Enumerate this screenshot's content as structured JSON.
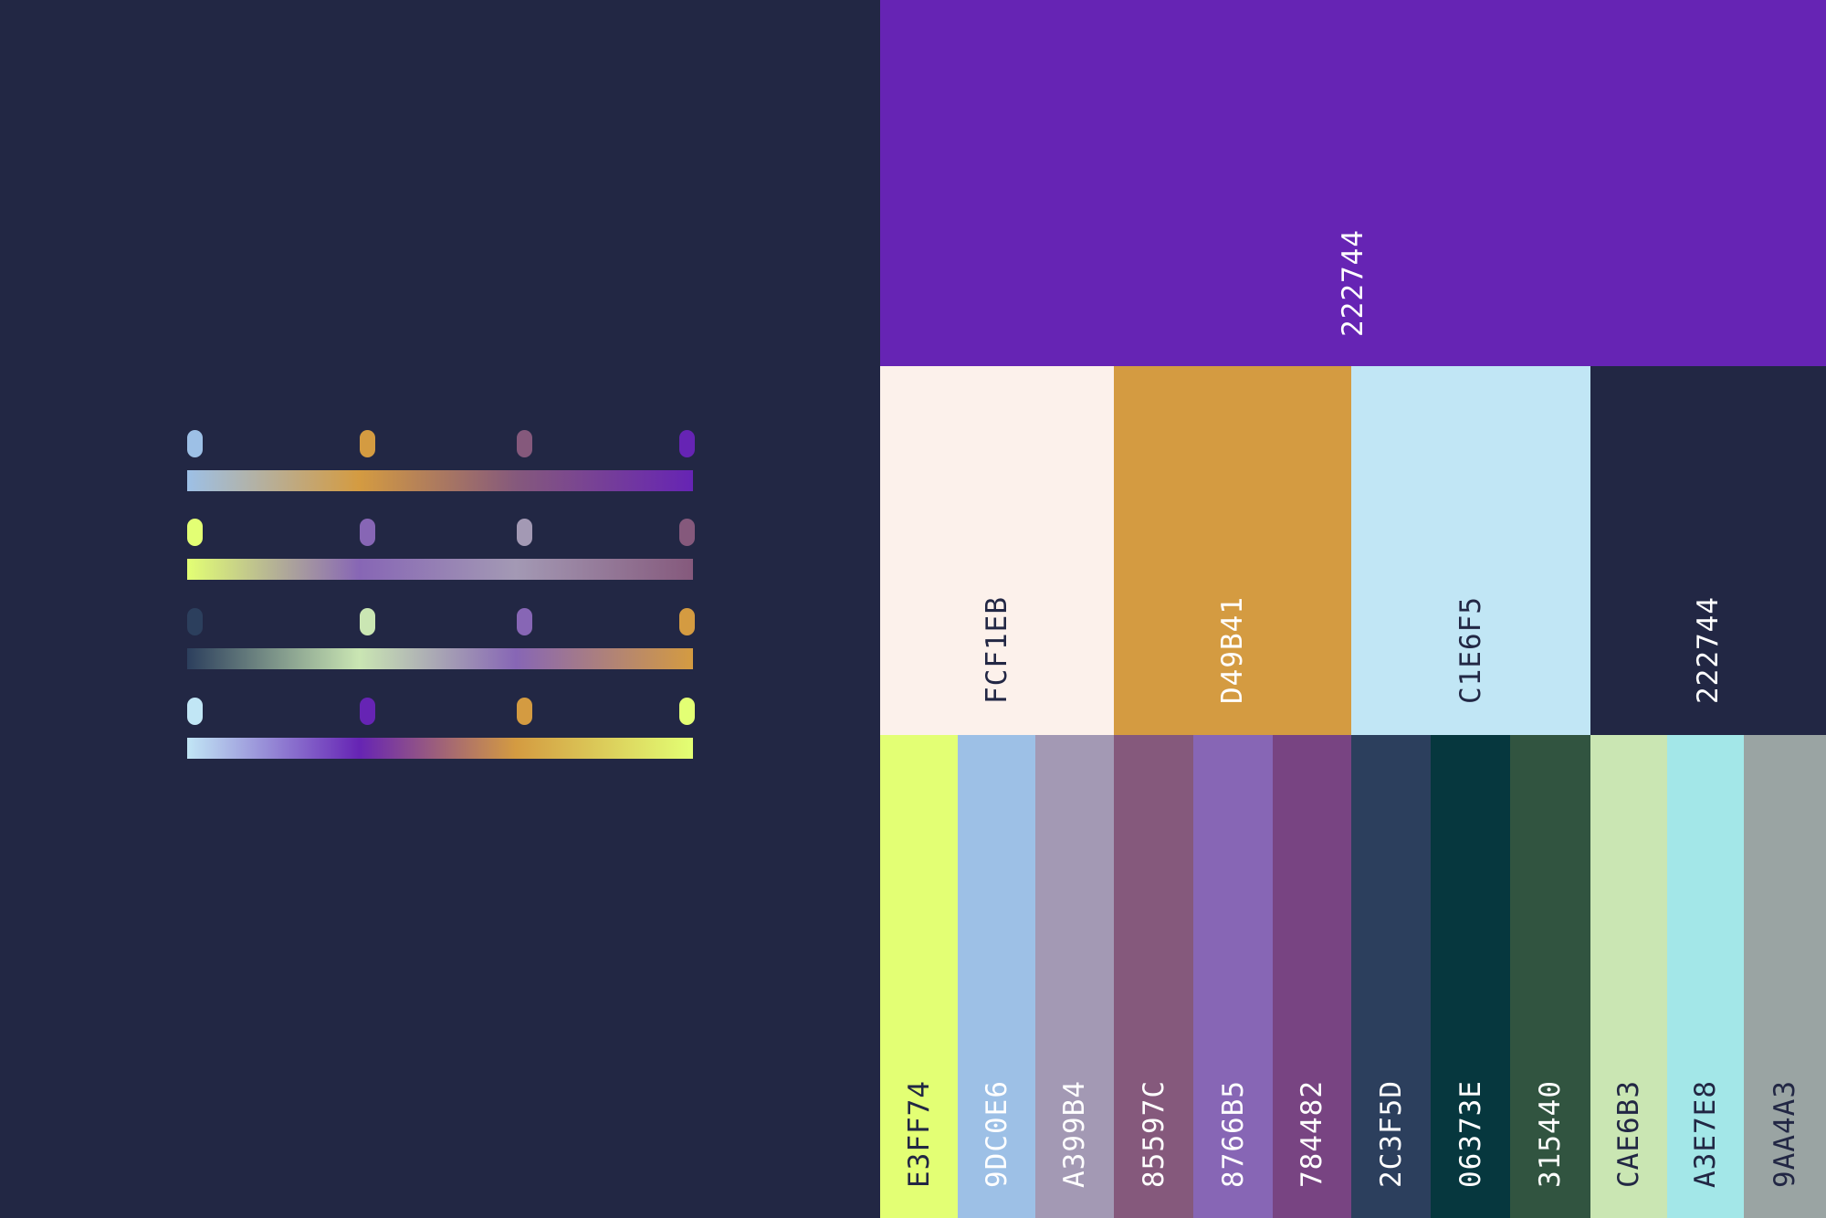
{
  "palette": {
    "hero": {
      "hex": "222744",
      "fill": "#6624B4",
      "text": "#FFFFFF"
    },
    "mid": [
      {
        "hex": "FCF1EB",
        "fill": "#FCF1EB",
        "text": "#222744"
      },
      {
        "hex": "D49B41",
        "fill": "#D49B41",
        "text": "#FFFFFF"
      },
      {
        "hex": "C1E6F5",
        "fill": "#C1E6F5",
        "text": "#222744"
      },
      {
        "hex": "222744",
        "fill": "#222744",
        "text": "#FFFFFF"
      }
    ],
    "bottom": [
      {
        "hex": "E3FF74",
        "fill": "#E3FF74",
        "text": "#222744"
      },
      {
        "hex": "9DC0E6",
        "fill": "#9DC0E6",
        "text": "#FFFFFF"
      },
      {
        "hex": "A399B4",
        "fill": "#A399B4",
        "text": "#FFFFFF"
      },
      {
        "hex": "85597C",
        "fill": "#85597C",
        "text": "#FFFFFF"
      },
      {
        "hex": "8766B5",
        "fill": "#8766B5",
        "text": "#FFFFFF"
      },
      {
        "hex": "784482",
        "fill": "#784482",
        "text": "#FFFFFF"
      },
      {
        "hex": "2C3F5D",
        "fill": "#2C3F5D",
        "text": "#FFFFFF"
      },
      {
        "hex": "06373E",
        "fill": "#06373E",
        "text": "#FFFFFF"
      },
      {
        "hex": "315440",
        "fill": "#315440",
        "text": "#FFFFFF"
      },
      {
        "hex": "CAE6B3",
        "fill": "#CAE6B3",
        "text": "#222744"
      },
      {
        "hex": "A3E7E8",
        "fill": "#A3E7E8",
        "text": "#222744"
      },
      {
        "hex": "9AA4A3",
        "fill": "#9AA4A3",
        "text": "#222744"
      }
    ]
  },
  "gradients": [
    [
      "#9DC0E6",
      "#D49B41",
      "#85597C",
      "#6624B4"
    ],
    [
      "#E3FF74",
      "#8766B5",
      "#A399B4",
      "#85597C"
    ],
    [
      "#2C3F5D",
      "#CAE6B3",
      "#8766B5",
      "#D49B41"
    ],
    [
      "#C1E6F5",
      "#6624B4",
      "#D49B41",
      "#E3FF74"
    ]
  ],
  "background": "#222744"
}
